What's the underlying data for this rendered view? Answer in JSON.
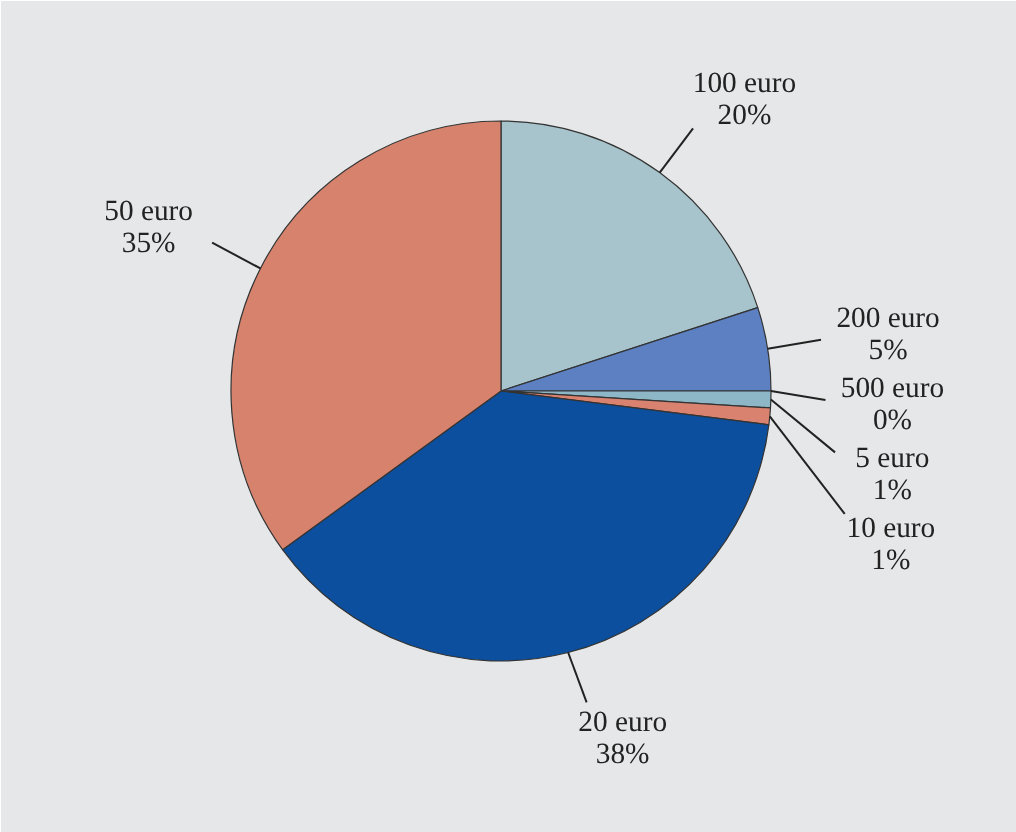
{
  "chart_data": {
    "type": "pie",
    "categories": [
      "100 euro",
      "200 euro",
      "500 euro",
      "5 euro",
      "10 euro",
      "20 euro",
      "50 euro"
    ],
    "values": [
      20,
      5,
      0,
      1,
      1,
      38,
      35
    ],
    "value_labels": [
      "20%",
      "5%",
      "0%",
      "1%",
      "1%",
      "38%",
      "35%"
    ],
    "colors": [
      "#a7c4cc",
      "#5d80c2",
      "#7d9ccc",
      "#8db6c6",
      "#d98270",
      "#0b4f9e",
      "#d6826d"
    ]
  }
}
